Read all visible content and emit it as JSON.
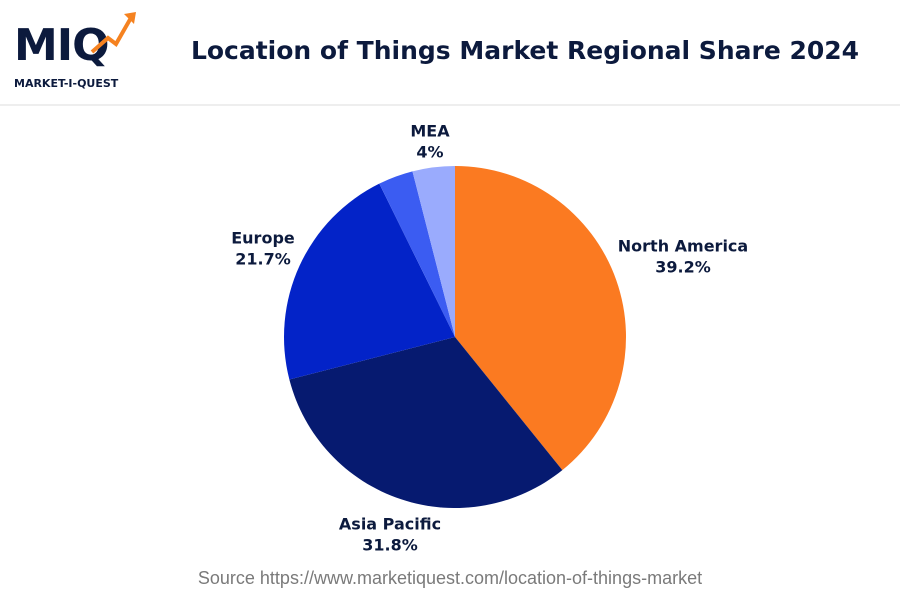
{
  "logo": {
    "text": "MIQ",
    "tagline": "MARKET-I-QUEST"
  },
  "chart_data": {
    "type": "pie",
    "title": "Location of Things Market Regional Share 2024",
    "categories": [
      "North America",
      "Asia Pacific",
      "Europe",
      null,
      "MEA"
    ],
    "values": [
      39.2,
      31.8,
      21.7,
      3.3,
      4
    ],
    "value_labels": [
      "39.2%",
      "31.8%",
      "21.7%",
      null,
      "4%"
    ],
    "colors": [
      "#fb7a21",
      "#061a70",
      "#0323c8",
      "#3b5cf2",
      "#9aabfd"
    ],
    "source": "Source https://www.marketiquest.com/location-of-things-market"
  }
}
